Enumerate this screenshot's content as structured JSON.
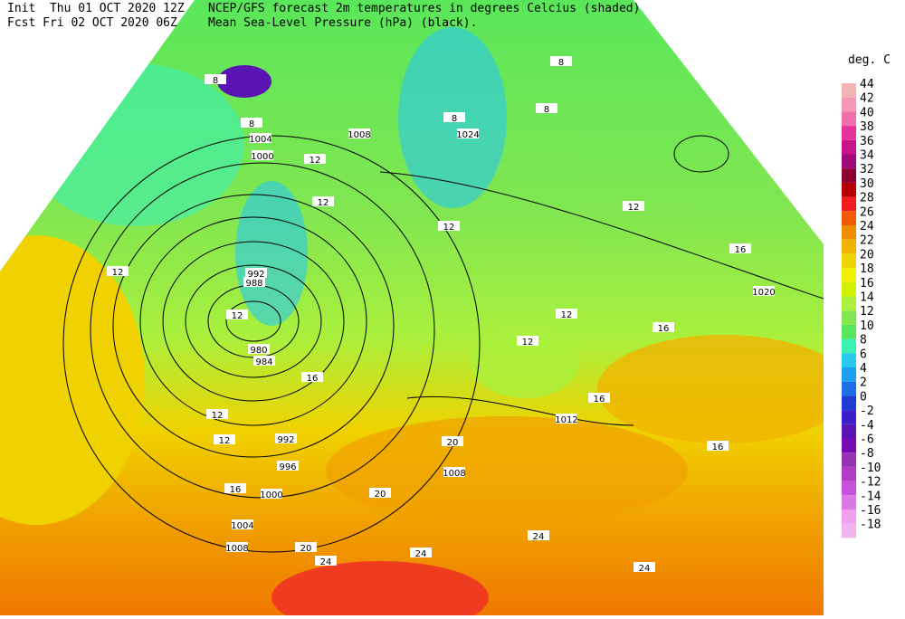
{
  "header": {
    "init": "Init  Thu 01 OCT 2020 12Z",
    "fcst": "Fcst Fri 02 OCT 2020 06Z",
    "desc1": "NCEP/GFS forecast 2m temperatures in degrees Celcius (shaded)",
    "desc2": "Mean Sea-Level Pressure (hPa) (black)."
  },
  "legend": {
    "title": "deg. C",
    "levels": [
      {
        "value": 44,
        "color": "#f5b4b4"
      },
      {
        "value": 42,
        "color": "#f596b4"
      },
      {
        "value": 40,
        "color": "#f06eaa"
      },
      {
        "value": 38,
        "color": "#e6329b"
      },
      {
        "value": 36,
        "color": "#c8148c"
      },
      {
        "value": 34,
        "color": "#a00a78"
      },
      {
        "value": 32,
        "color": "#8c0032"
      },
      {
        "value": 30,
        "color": "#b40000"
      },
      {
        "value": 28,
        "color": "#f01e1e"
      },
      {
        "value": 26,
        "color": "#f05a00"
      },
      {
        "value": 24,
        "color": "#f08c00"
      },
      {
        "value": 22,
        "color": "#f0b400"
      },
      {
        "value": 20,
        "color": "#f0d200"
      },
      {
        "value": 18,
        "color": "#f0f000"
      },
      {
        "value": 16,
        "color": "#d2f000"
      },
      {
        "value": 14,
        "color": "#aaf03c"
      },
      {
        "value": 12,
        "color": "#82e650"
      },
      {
        "value": 10,
        "color": "#5ae65a"
      },
      {
        "value": 8,
        "color": "#3cf0b4"
      },
      {
        "value": 6,
        "color": "#28c8f0"
      },
      {
        "value": 4,
        "color": "#1ea0f0"
      },
      {
        "value": 2,
        "color": "#1e6ee6"
      },
      {
        "value": 0,
        "color": "#1e3cd2"
      },
      {
        "value": -2,
        "color": "#3c1ec8"
      },
      {
        "value": -4,
        "color": "#5a14b4"
      },
      {
        "value": -6,
        "color": "#780ab4"
      },
      {
        "value": -8,
        "color": "#9632b4"
      },
      {
        "value": -10,
        "color": "#b43cc8"
      },
      {
        "value": -12,
        "color": "#c850dc"
      },
      {
        "value": -14,
        "color": "#dc78e6"
      },
      {
        "value": -16,
        "color": "#f0a0f0"
      },
      {
        "value": -18,
        "color": "#f0b4f0"
      }
    ]
  },
  "isobar_labels": [
    1004,
    1000,
    1008,
    1024,
    992,
    988,
    980,
    984,
    1020,
    1012,
    992,
    996,
    1000,
    1004,
    1008,
    1008
  ],
  "temp_labels": [
    8,
    8,
    8,
    8,
    12,
    12,
    12,
    12,
    12,
    12,
    12,
    12,
    16,
    16,
    16,
    16,
    16,
    20,
    20,
    20,
    24,
    24,
    24,
    24,
    12,
    8,
    12,
    16
  ]
}
